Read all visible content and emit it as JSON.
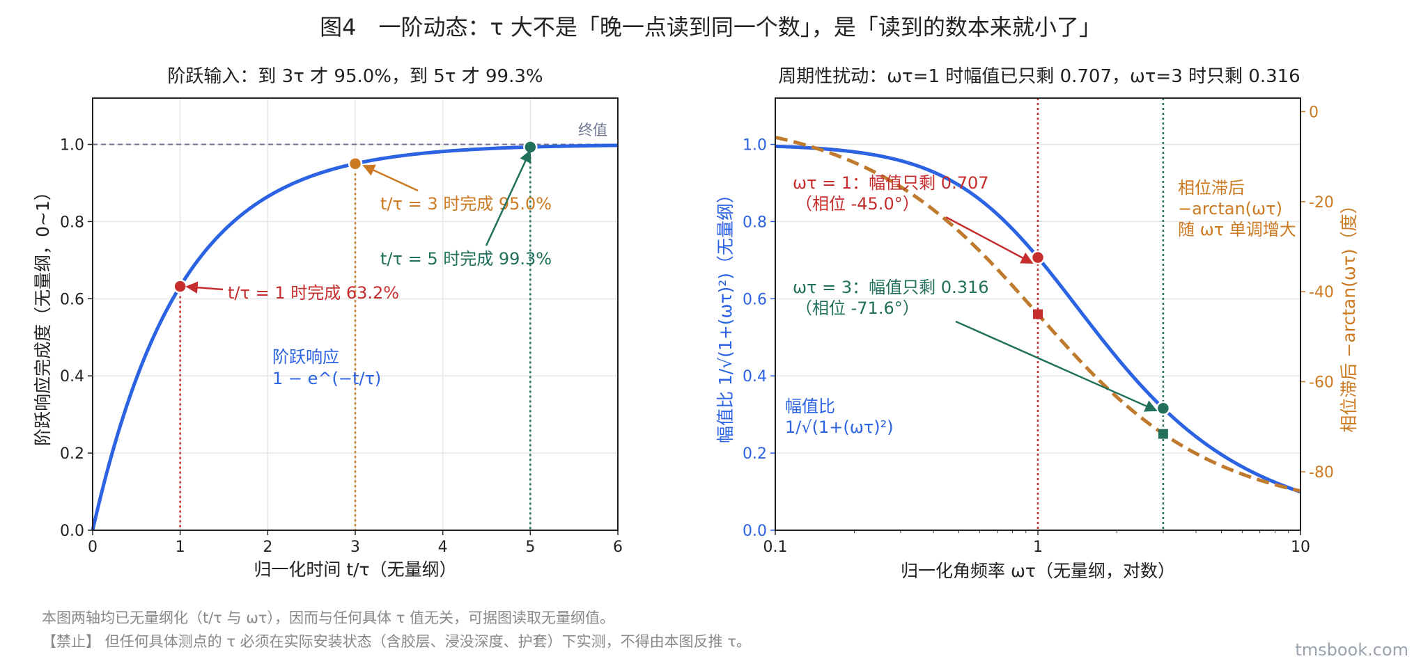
{
  "figure": {
    "title": "图4　一阶动态：τ 大不是「晚一点读到同一个数」，是「读到的数本来就小了」",
    "footnote_1": "本图两轴均已无量纲化（t/τ 与 ωτ），因而与任何具体 τ 值无关，可据图读取无量纲值。",
    "footnote_2": "【禁止】 但任何具体测点的 τ 必须在实际安装状态（含胶层、浸没深度、护套）下实测，不得由本图反推 τ。",
    "watermark": "tmsbook.com"
  },
  "colors": {
    "blue": "#2b63e3",
    "red": "#c62d2d",
    "orange": "#cc7a22",
    "green": "#20705c",
    "grey_dash": "#6d7591",
    "phase_curve": "#c07a2e"
  },
  "chart_data": [
    {
      "type": "line",
      "title": "阶跃输入：到 3τ 才 95.0%，到 5τ 才 99.3%",
      "xlabel": "归一化时间 t/τ（无量纲）",
      "ylabel": "阶跃响应完成度（无量纲，0~1）",
      "xlim": [
        0,
        6
      ],
      "ylim": [
        0,
        1.12
      ],
      "xticks": [
        "0",
        "1",
        "2",
        "3",
        "4",
        "5",
        "6"
      ],
      "yticks": [
        "0.0",
        "0.2",
        "0.4",
        "0.6",
        "0.8",
        "1.0"
      ],
      "grid": true,
      "series": [
        {
          "name": "阶跃响应\n1 − e^(−t/τ)",
          "function": "1 - exp(-t)",
          "color": "#2b63e3"
        }
      ],
      "reference_line": {
        "y": 1.0,
        "label": "终值",
        "color": "#6d7591"
      },
      "points": [
        {
          "x": 1,
          "y": 0.632,
          "color": "#c62d2d",
          "label": "t/τ = 1 时完成 63.2%"
        },
        {
          "x": 3,
          "y": 0.95,
          "color": "#cc7a22",
          "label": "t/τ = 3 时完成 95.0%"
        },
        {
          "x": 5,
          "y": 0.993,
          "color": "#20705c",
          "label": "t/τ = 5 时完成 99.3%"
        }
      ],
      "curve_label_1": "阶跃响应",
      "curve_label_2": "1 − e^(−t/τ)"
    },
    {
      "type": "line",
      "title": "周期性扰动：ωτ=1 时幅值已只剩 0.707，ωτ=3 时只剩 0.316",
      "xlabel": "归一化角频率 ωτ（无量纲，对数）",
      "ylabel": "幅值比 1/√(1+(ωτ)²)（无量纲）",
      "y2label": "相位滞后 −arctan(ωτ)（度）",
      "xscale": "log",
      "xlim": [
        0.1,
        10
      ],
      "ylim": [
        0,
        1.12
      ],
      "y2lim": [
        -93,
        3
      ],
      "xticks": [
        "0.1",
        "1",
        "10"
      ],
      "yticks": [
        "0.0",
        "0.2",
        "0.4",
        "0.6",
        "0.8",
        "1.0"
      ],
      "y2ticks": [
        "0",
        "-20",
        "-40",
        "-60",
        "-80"
      ],
      "grid": true,
      "series": [
        {
          "name": "幅值比\n1/√(1+(ωτ)²)",
          "function": "1/sqrt(1+w^2)",
          "axis": "left",
          "color": "#2b63e3"
        },
        {
          "name": "相位滞后\n−arctan(ωτ)",
          "function": "-atan(w) deg",
          "axis": "right",
          "color": "#c07a2e",
          "dash": true
        }
      ],
      "points": [
        {
          "x": 1,
          "amplitude": 0.707,
          "phase_deg": -45.0,
          "color": "#c62d2d"
        },
        {
          "x": 3,
          "amplitude": 0.316,
          "phase_deg": -71.6,
          "color": "#20705c"
        }
      ],
      "annotation_1_line1": "ωτ = 1：幅值只剩 0.707",
      "annotation_1_line2": "（相位 -45.0°）",
      "annotation_3_line1": "ωτ = 3：幅值只剩 0.316",
      "annotation_3_line2": "（相位 -71.6°）",
      "amp_label_1": "幅值比",
      "amp_label_2": "1/√(1+(ωτ)²)",
      "phase_label_1": "相位滞后",
      "phase_label_2": "−arctan(ωτ)",
      "phase_label_3": "随 ωτ 单调增大"
    }
  ]
}
